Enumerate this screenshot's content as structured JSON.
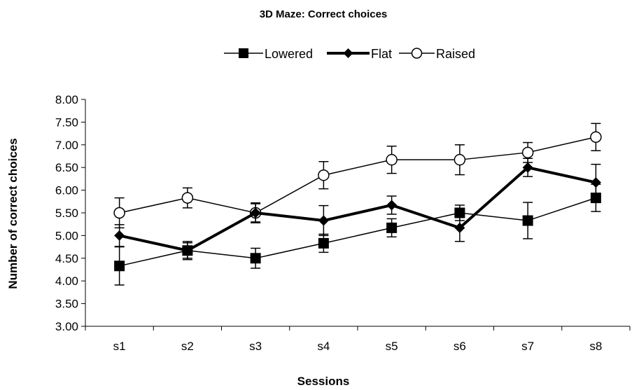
{
  "chart_data": {
    "type": "line",
    "title": "3D Maze: Correct choices",
    "xlabel": "Sessions",
    "ylabel": "Number of correct choices",
    "categories": [
      "s1",
      "s2",
      "s3",
      "s4",
      "s5",
      "s6",
      "s7",
      "s8"
    ],
    "ylim": [
      3.0,
      8.0
    ],
    "yticks": [
      "3.00",
      "3.50",
      "4.00",
      "4.50",
      "5.00",
      "5.50",
      "6.00",
      "6.50",
      "7.00",
      "7.50",
      "8.00"
    ],
    "grid": false,
    "legend_position": "top",
    "series": [
      {
        "name": "Lowered",
        "marker": "square",
        "color": "#000000",
        "values": [
          4.33,
          4.67,
          4.5,
          4.83,
          5.17,
          5.5,
          5.33,
          5.83
        ],
        "errors": [
          0.42,
          0.17,
          0.22,
          0.2,
          0.2,
          0.17,
          0.4,
          0.3
        ]
      },
      {
        "name": "Flat",
        "marker": "diamond",
        "color": "#000000",
        "values": [
          5.0,
          4.67,
          5.5,
          5.33,
          5.67,
          5.17,
          6.5,
          6.17
        ],
        "errors": [
          0.24,
          0.2,
          0.2,
          0.33,
          0.2,
          0.3,
          0.2,
          0.4
        ]
      },
      {
        "name": "Raised",
        "marker": "circle",
        "color": "#000000",
        "values": [
          5.5,
          5.83,
          5.5,
          6.33,
          6.67,
          6.67,
          6.83,
          7.17
        ],
        "errors": [
          0.33,
          0.22,
          0.22,
          0.3,
          0.3,
          0.33,
          0.22,
          0.3
        ]
      }
    ]
  }
}
